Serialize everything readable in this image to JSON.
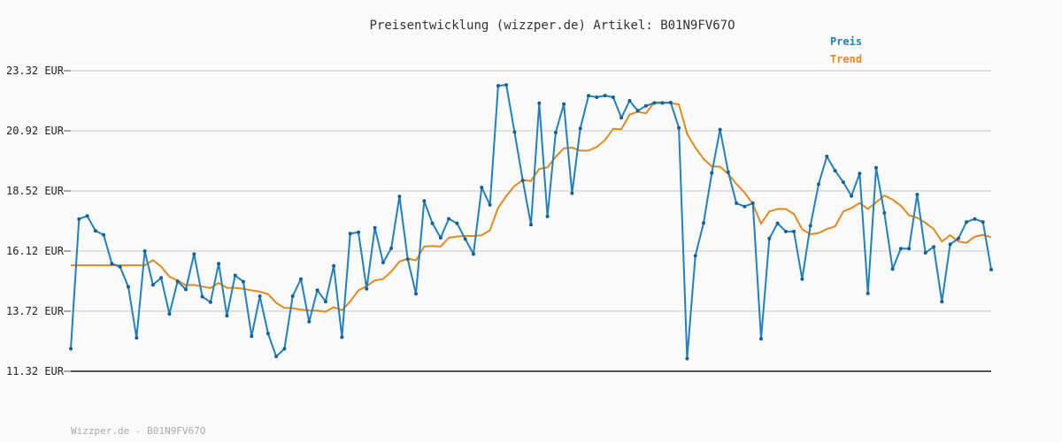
{
  "chart_data": {
    "type": "line",
    "title": "Preisentwicklung (wizzper.de) Artikel: B01N9FV67O",
    "footer": "Wizzper.de - B01N9FV67O",
    "ylim": [
      11.32,
      23.32
    ],
    "yticks": [
      "23.32 EUR",
      "20.92 EUR",
      "18.52 EUR",
      "16.12 EUR",
      "13.72 EUR",
      "11.32 EUR"
    ],
    "ytick_values": [
      23.32,
      20.92,
      18.52,
      16.12,
      13.72,
      11.32
    ],
    "grid": true,
    "legend_position": "top-right",
    "series": [
      {
        "name": "Preis",
        "color": "#2080c0",
        "values": [
          12.22,
          17.4,
          17.52,
          16.93,
          16.77,
          15.62,
          15.49,
          14.69,
          12.65,
          16.12,
          14.77,
          15.05,
          13.61,
          14.91,
          14.59,
          16.0,
          14.3,
          14.08,
          15.62,
          13.54,
          15.15,
          14.89,
          12.72,
          14.32,
          12.83,
          11.91,
          12.22,
          14.32,
          15.0,
          13.3,
          14.56,
          14.1,
          15.53,
          12.68,
          16.82,
          16.87,
          14.61,
          17.05,
          15.66,
          16.23,
          18.3,
          15.8,
          14.41,
          18.12,
          17.23,
          16.65,
          17.41,
          17.23,
          16.6,
          16.0,
          18.66,
          17.96,
          22.72,
          22.75,
          20.87,
          18.94,
          17.17,
          22.02,
          17.5,
          20.85,
          21.99,
          18.43,
          21.01,
          22.32,
          22.26,
          22.33,
          22.26,
          21.44,
          22.12,
          21.72,
          21.92,
          22.03,
          22.03,
          22.05,
          21.04,
          11.83,
          15.93,
          17.24,
          19.24,
          20.97,
          19.27,
          18.03,
          17.9,
          18.03,
          12.62,
          16.62,
          17.23,
          16.9,
          16.9,
          15.0,
          17.13,
          18.79,
          19.9,
          19.33,
          18.87,
          18.32,
          19.22,
          14.43,
          19.45,
          17.64,
          15.4,
          16.22,
          16.22,
          18.38,
          16.05,
          16.29,
          14.1,
          16.39,
          16.62,
          17.28,
          17.4,
          17.28,
          15.38
        ]
      },
      {
        "name": "Trend",
        "color": "#e08a1e",
        "values": [
          15.55,
          15.55,
          15.55,
          15.55,
          15.55,
          15.55,
          15.55,
          15.55,
          15.55,
          15.55,
          15.76,
          15.5,
          15.1,
          14.95,
          14.75,
          14.77,
          14.7,
          14.64,
          14.85,
          14.65,
          14.65,
          14.61,
          14.55,
          14.5,
          14.4,
          14.05,
          13.85,
          13.84,
          13.78,
          13.75,
          13.74,
          13.7,
          13.88,
          13.76,
          14.1,
          14.55,
          14.72,
          14.95,
          15.0,
          15.3,
          15.7,
          15.82,
          15.75,
          16.3,
          16.32,
          16.3,
          16.65,
          16.7,
          16.72,
          16.72,
          16.75,
          16.95,
          17.85,
          18.32,
          18.72,
          18.95,
          18.92,
          19.4,
          19.46,
          19.88,
          20.22,
          20.25,
          20.13,
          20.13,
          20.28,
          20.55,
          21.0,
          20.98,
          21.57,
          21.68,
          21.62,
          22.06,
          22.06,
          22.02,
          21.98,
          20.8,
          20.25,
          19.8,
          19.5,
          19.49,
          19.2,
          18.8,
          18.45,
          18.0,
          17.21,
          17.7,
          17.8,
          17.8,
          17.6,
          16.99,
          16.79,
          16.84,
          17.0,
          17.1,
          17.7,
          17.84,
          18.04,
          17.8,
          18.06,
          18.34,
          18.17,
          17.93,
          17.55,
          17.45,
          17.25,
          17.0,
          16.5,
          16.75,
          16.5,
          16.45,
          16.69,
          16.77,
          16.67
        ]
      }
    ]
  }
}
